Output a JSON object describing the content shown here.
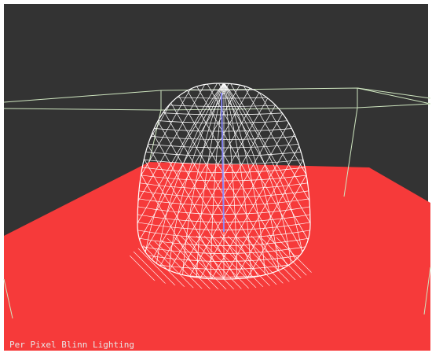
{
  "overlay": {
    "label": "Per Pixel Blinn Lighting"
  },
  "scene": {
    "background_color": "#333333",
    "floor_color": "#f63a3a",
    "bounding_box_color": "#cfe6c0",
    "wireframe_color": "#ffffff",
    "axis_color": "#8888ff",
    "mesh": "wireframe-dome"
  }
}
